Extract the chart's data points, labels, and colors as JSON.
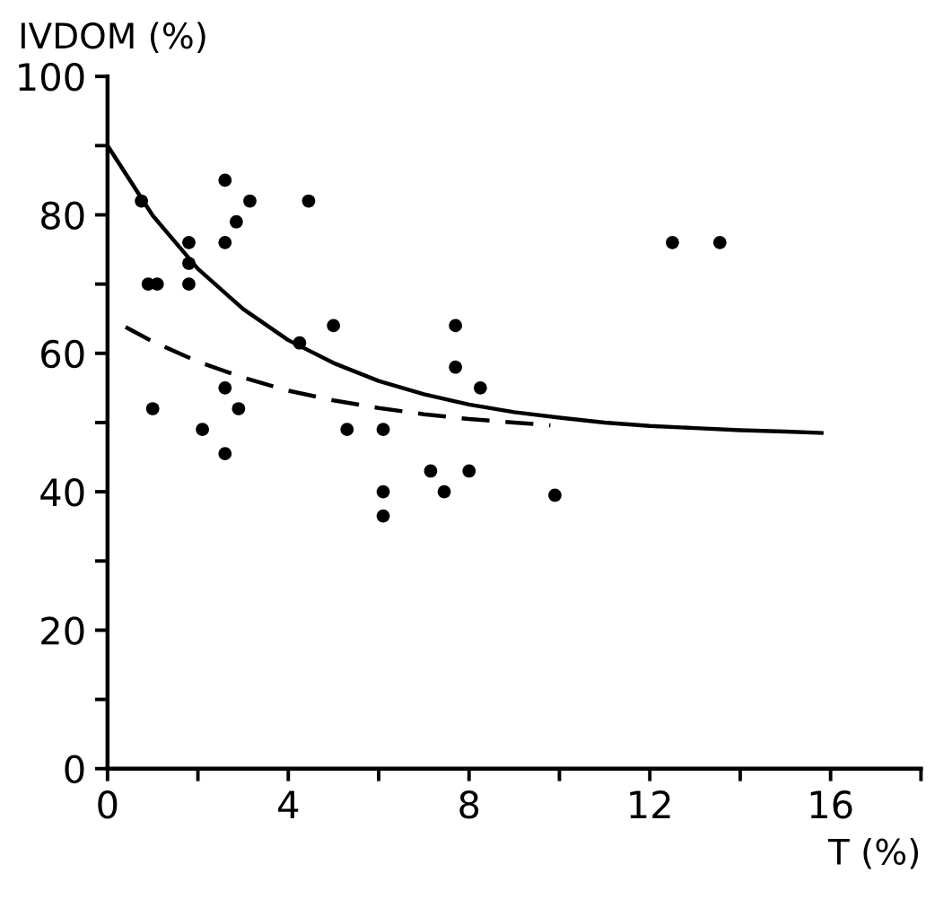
{
  "chart_data": {
    "type": "scatter",
    "xlabel": "T (%)",
    "ylabel": "IVDOM (%)",
    "xlim": [
      0,
      18
    ],
    "ylim": [
      0,
      100
    ],
    "xticks": [
      0,
      {
        "value": 2,
        "label": null
      },
      4,
      {
        "value": 6,
        "label": null
      },
      8,
      {
        "value": 10,
        "label": null
      },
      12,
      {
        "value": 14,
        "label": null
      },
      16,
      {
        "value": 18,
        "label": null
      }
    ],
    "yticks": [
      0,
      {
        "value": 10,
        "label": null
      },
      20,
      {
        "value": 30,
        "label": null
      },
      40,
      {
        "value": 50,
        "label": null
      },
      60,
      {
        "value": 70,
        "label": null
      },
      80,
      {
        "value": 90,
        "label": null
      },
      100
    ],
    "grid": false,
    "series": [
      {
        "marker": "circle",
        "color": "#000000",
        "x": [
          0.75,
          0.9,
          1.1,
          1.0,
          1.8,
          1.8,
          1.8,
          2.1,
          2.6,
          2.6,
          2.6,
          2.6,
          2.85,
          2.9,
          3.15,
          4.45,
          4.25,
          5.0,
          5.3,
          6.1,
          6.1,
          6.1,
          7.15,
          7.45,
          8.0,
          7.7,
          7.7,
          8.25,
          9.9,
          12.5,
          13.55
        ],
        "values": [
          82,
          70,
          70,
          52,
          76,
          73,
          70,
          49,
          85,
          76,
          55,
          45.5,
          79,
          52,
          82,
          82,
          61.5,
          64,
          49,
          49,
          40,
          36.5,
          43,
          40,
          43,
          64,
          58,
          55,
          39.5,
          76,
          76
        ]
      },
      {
        "type": "line",
        "line_style": "solid",
        "color": "#000000",
        "x": [
          0,
          1,
          2,
          3,
          4,
          5,
          6,
          7,
          8,
          9,
          10,
          11,
          12,
          13,
          14,
          15,
          15.8
        ],
        "values": [
          90,
          79.9,
          72.2,
          66.4,
          61.9,
          58.6,
          56.0,
          54.1,
          52.6,
          51.5,
          50.7,
          50.0,
          49.5,
          49.2,
          48.9,
          48.7,
          48.5
        ]
      },
      {
        "type": "line",
        "line_style": "dashed",
        "color": "#000000",
        "x": [
          0.4,
          1,
          2,
          3,
          4,
          5,
          6,
          7,
          8,
          9,
          9.8
        ],
        "values": [
          63.8,
          61.7,
          58.8,
          56.5,
          54.6,
          53.2,
          52.1,
          51.2,
          50.5,
          50.0,
          49.6
        ]
      }
    ]
  }
}
